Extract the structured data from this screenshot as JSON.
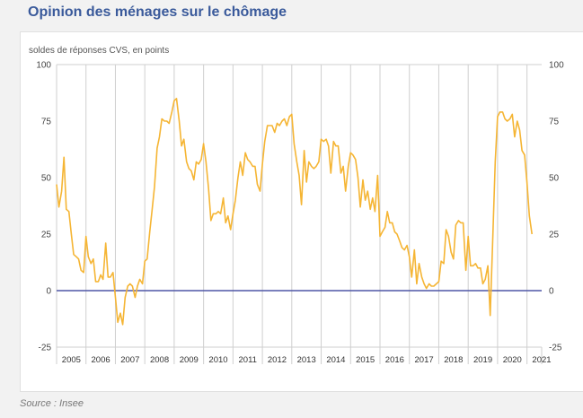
{
  "page": {
    "title": "Opinion des ménages sur le chômage",
    "source": "Source : Insee"
  },
  "chart_data": {
    "type": "line",
    "ylabel": "soldes de réponses CVS, en points",
    "ylim": [
      -25,
      100
    ],
    "yticks": [
      "100",
      "75",
      "50",
      "25",
      "0",
      "-25"
    ],
    "ytick_values": [
      100,
      75,
      50,
      25,
      0,
      -25
    ],
    "xlim": [
      2005,
      2021.5
    ],
    "year_labels": [
      "2005",
      "2006",
      "2007",
      "2008",
      "2009",
      "2010",
      "2011",
      "2012",
      "2013",
      "2014",
      "2015",
      "2016",
      "2017",
      "2018",
      "2019",
      "2020",
      "2021"
    ],
    "grid": true,
    "zero_line": true,
    "colors": {
      "series": "#f5b534",
      "zero_line": "#4e56a6",
      "grid": "#cfcfcf"
    },
    "series": [
      {
        "x": [
          2005.0,
          2005.08,
          2005.17,
          2005.25,
          2005.33,
          2005.42,
          2005.5,
          2005.58,
          2005.67,
          2005.75,
          2005.83,
          2005.92,
          2006.0,
          2006.08,
          2006.17,
          2006.25,
          2006.33,
          2006.42,
          2006.5,
          2006.58,
          2006.67,
          2006.75,
          2006.83,
          2006.92,
          2007.0,
          2007.08,
          2007.17,
          2007.25,
          2007.33,
          2007.42,
          2007.5,
          2007.58,
          2007.67,
          2007.75,
          2007.83,
          2007.92,
          2008.0,
          2008.08,
          2008.17,
          2008.25,
          2008.33,
          2008.42,
          2008.5,
          2008.58,
          2008.67,
          2008.75,
          2008.83,
          2008.92,
          2009.0,
          2009.08,
          2009.17,
          2009.25,
          2009.33,
          2009.42,
          2009.5,
          2009.58,
          2009.67,
          2009.75,
          2009.83,
          2009.92,
          2010.0,
          2010.08,
          2010.17,
          2010.25,
          2010.33,
          2010.42,
          2010.5,
          2010.58,
          2010.67,
          2010.75,
          2010.83,
          2010.92,
          2011.0,
          2011.08,
          2011.17,
          2011.25,
          2011.33,
          2011.42,
          2011.5,
          2011.58,
          2011.67,
          2011.75,
          2011.83,
          2011.92,
          2012.0,
          2012.08,
          2012.17,
          2012.25,
          2012.33,
          2012.42,
          2012.5,
          2012.58,
          2012.67,
          2012.75,
          2012.83,
          2012.92,
          2013.0,
          2013.08,
          2013.17,
          2013.25,
          2013.33,
          2013.42,
          2013.5,
          2013.58,
          2013.67,
          2013.75,
          2013.83,
          2013.92,
          2014.0,
          2014.08,
          2014.17,
          2014.25,
          2014.33,
          2014.42,
          2014.5,
          2014.58,
          2014.67,
          2014.75,
          2014.83,
          2014.92,
          2015.0,
          2015.08,
          2015.17,
          2015.25,
          2015.33,
          2015.42,
          2015.5,
          2015.58,
          2015.67,
          2015.75,
          2015.83,
          2015.92,
          2016.0,
          2016.08,
          2016.17,
          2016.25,
          2016.33,
          2016.42,
          2016.5,
          2016.58,
          2016.67,
          2016.75,
          2016.83,
          2016.92,
          2017.0,
          2017.08,
          2017.17,
          2017.25,
          2017.33,
          2017.42,
          2017.5,
          2017.58,
          2017.67,
          2017.75,
          2017.83,
          2017.92,
          2018.0,
          2018.08,
          2018.17,
          2018.25,
          2018.33,
          2018.42,
          2018.5,
          2018.58,
          2018.67,
          2018.75,
          2018.83,
          2018.92,
          2019.0,
          2019.08,
          2019.17,
          2019.25,
          2019.33,
          2019.42,
          2019.5,
          2019.58,
          2019.67,
          2019.75,
          2019.83,
          2019.92,
          2020.0,
          2020.08,
          2020.17,
          2020.25,
          2020.33,
          2020.42,
          2020.5,
          2020.58,
          2020.67,
          2020.75,
          2020.83,
          2020.92,
          2021.0,
          2021.08,
          2021.17
        ],
        "values": [
          47,
          37,
          44,
          59,
          36,
          35,
          25,
          16,
          15,
          14,
          9,
          8,
          24,
          15,
          12,
          14,
          4,
          4,
          7,
          5,
          21,
          6,
          6,
          8,
          -3,
          -14,
          -10,
          -15,
          -3,
          2,
          3,
          2,
          -3,
          2,
          5,
          3,
          13,
          14,
          26,
          36,
          46,
          63,
          68,
          76,
          75,
          75,
          74,
          79,
          84,
          85,
          75,
          64,
          67,
          57,
          54,
          53,
          49,
          57,
          56,
          58,
          65,
          57,
          45,
          31,
          34,
          34,
          35,
          34,
          41,
          30,
          33,
          27,
          34,
          40,
          50,
          57,
          51,
          61,
          58,
          57,
          55,
          55,
          47,
          44,
          56,
          66,
          73,
          73,
          73,
          70,
          74,
          73,
          75,
          76,
          73,
          77,
          78,
          65,
          57,
          51,
          38,
          62,
          48,
          57,
          55,
          54,
          55,
          57,
          67,
          66,
          67,
          64,
          52,
          66,
          64,
          64,
          52,
          55,
          44,
          55,
          61,
          60,
          58,
          50,
          37,
          49,
          40,
          44,
          36,
          41,
          35,
          51,
          24,
          26,
          28,
          35,
          30,
          30,
          26,
          25,
          22,
          19,
          18,
          20,
          15,
          6,
          18,
          3,
          12,
          6,
          3,
          1,
          3,
          2,
          2,
          3,
          4,
          13,
          12,
          27,
          24,
          17,
          14,
          29,
          31,
          30,
          30,
          9,
          24,
          11,
          11,
          12,
          10,
          10,
          3,
          5,
          11,
          -11,
          20,
          57,
          77,
          79,
          79,
          76,
          75,
          76,
          78,
          68,
          75,
          71,
          62,
          60,
          48,
          33,
          25
        ]
      }
    ]
  }
}
